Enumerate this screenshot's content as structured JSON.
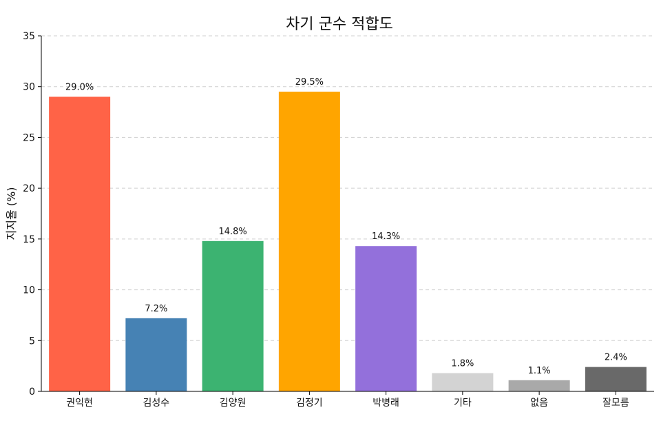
{
  "chart_data": {
    "type": "bar",
    "title": "차기 군수 적합도",
    "ylabel": "지지율 (%)",
    "xlabel": "",
    "ylim": [
      0,
      35
    ],
    "yticks": [
      0,
      5,
      10,
      15,
      20,
      25,
      30,
      35
    ],
    "grid": "y-dashed",
    "categories": [
      "권익현",
      "김성수",
      "김양원",
      "김정기",
      "박병래",
      "기타",
      "없음",
      "잘모름"
    ],
    "values": [
      29.0,
      7.2,
      14.8,
      29.5,
      14.3,
      1.8,
      1.1,
      2.4
    ],
    "value_labels": [
      "29.0%",
      "7.2%",
      "14.8%",
      "29.5%",
      "14.3%",
      "1.8%",
      "1.1%",
      "2.4%"
    ],
    "colors": [
      "#FF6347",
      "#4682B4",
      "#3CB371",
      "#FFA500",
      "#9370DB",
      "#D3D3D3",
      "#A9A9A9",
      "#696969"
    ]
  }
}
